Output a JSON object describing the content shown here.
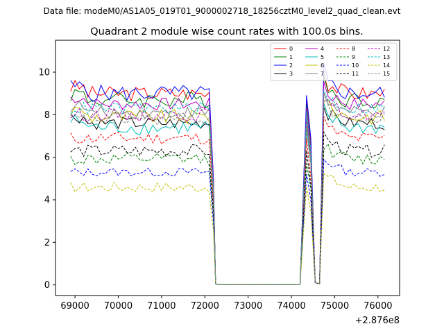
{
  "header": {
    "file_label": "Data file: modeM0/AS1A05_019T01_9000002718_18256cztM0_level2_quad_clean.evt"
  },
  "chart_data": {
    "type": "line",
    "title": "Quadrant 2 module wise count rates with 100.0s bins.",
    "xlabel": "",
    "ylabel": "",
    "x_offset_label": "+2.876e8",
    "x_offset": 287600000,
    "xlim": [
      68550,
      76500
    ],
    "ylim": [
      -0.5,
      11.5
    ],
    "x_ticks": [
      69000,
      70000,
      71000,
      72000,
      73000,
      74000,
      75000,
      76000
    ],
    "x_tick_labels": [
      "69000",
      "70000",
      "71000",
      "72000",
      "73000",
      "74000",
      "75000",
      "76000"
    ],
    "y_ticks": [
      0,
      2,
      4,
      6,
      8,
      10
    ],
    "y_tick_labels": [
      "0",
      "2",
      "4",
      "6",
      "8",
      "10"
    ],
    "grid": false,
    "legend_position": "top-right",
    "segments": [
      {
        "start": 68900,
        "end": 72100
      },
      {
        "start": 74350,
        "end": 74550
      },
      {
        "start": 74750,
        "end": 76200
      }
    ],
    "series": [
      {
        "name": "0",
        "color": "#ff0000",
        "dash": "solid",
        "level": 9.0,
        "amp": 0.35
      },
      {
        "name": "1",
        "color": "#008000",
        "dash": "solid",
        "level": 8.7,
        "amp": 0.4
      },
      {
        "name": "2",
        "color": "#0000ff",
        "dash": "solid",
        "level": 9.0,
        "amp": 0.4
      },
      {
        "name": "3",
        "color": "#000000",
        "dash": "solid",
        "level": 7.6,
        "amp": 0.3
      },
      {
        "name": "4",
        "color": "#bf00bf",
        "dash": "solid",
        "level": 8.5,
        "amp": 0.3
      },
      {
        "name": "5",
        "color": "#00bfbf",
        "dash": "solid",
        "level": 7.4,
        "amp": 0.35
      },
      {
        "name": "6",
        "color": "#bfbf00",
        "dash": "solid",
        "level": 7.9,
        "amp": 0.35
      },
      {
        "name": "7",
        "color": "#808080",
        "dash": "solid",
        "level": 8.1,
        "amp": 0.3
      },
      {
        "name": "8",
        "color": "#ff0000",
        "dash": "dashed",
        "level": 6.9,
        "amp": 0.3
      },
      {
        "name": "9",
        "color": "#008000",
        "dash": "dashed",
        "level": 5.9,
        "amp": 0.3
      },
      {
        "name": "10",
        "color": "#0000ff",
        "dash": "dashed",
        "level": 5.3,
        "amp": 0.2
      },
      {
        "name": "11",
        "color": "#000000",
        "dash": "dashed",
        "level": 6.3,
        "amp": 0.3
      },
      {
        "name": "12",
        "color": "#bf00bf",
        "dash": "dashed",
        "level": 8.0,
        "amp": 0.3
      },
      {
        "name": "13",
        "color": "#00bfbf",
        "dash": "dashed",
        "level": 8.3,
        "amp": 0.3
      },
      {
        "name": "14",
        "color": "#bfbf00",
        "dash": "dashed",
        "level": 4.6,
        "amp": 0.25
      },
      {
        "name": "15",
        "color": "#808080",
        "dash": "dashed",
        "level": 7.8,
        "amp": 0.3
      }
    ]
  }
}
